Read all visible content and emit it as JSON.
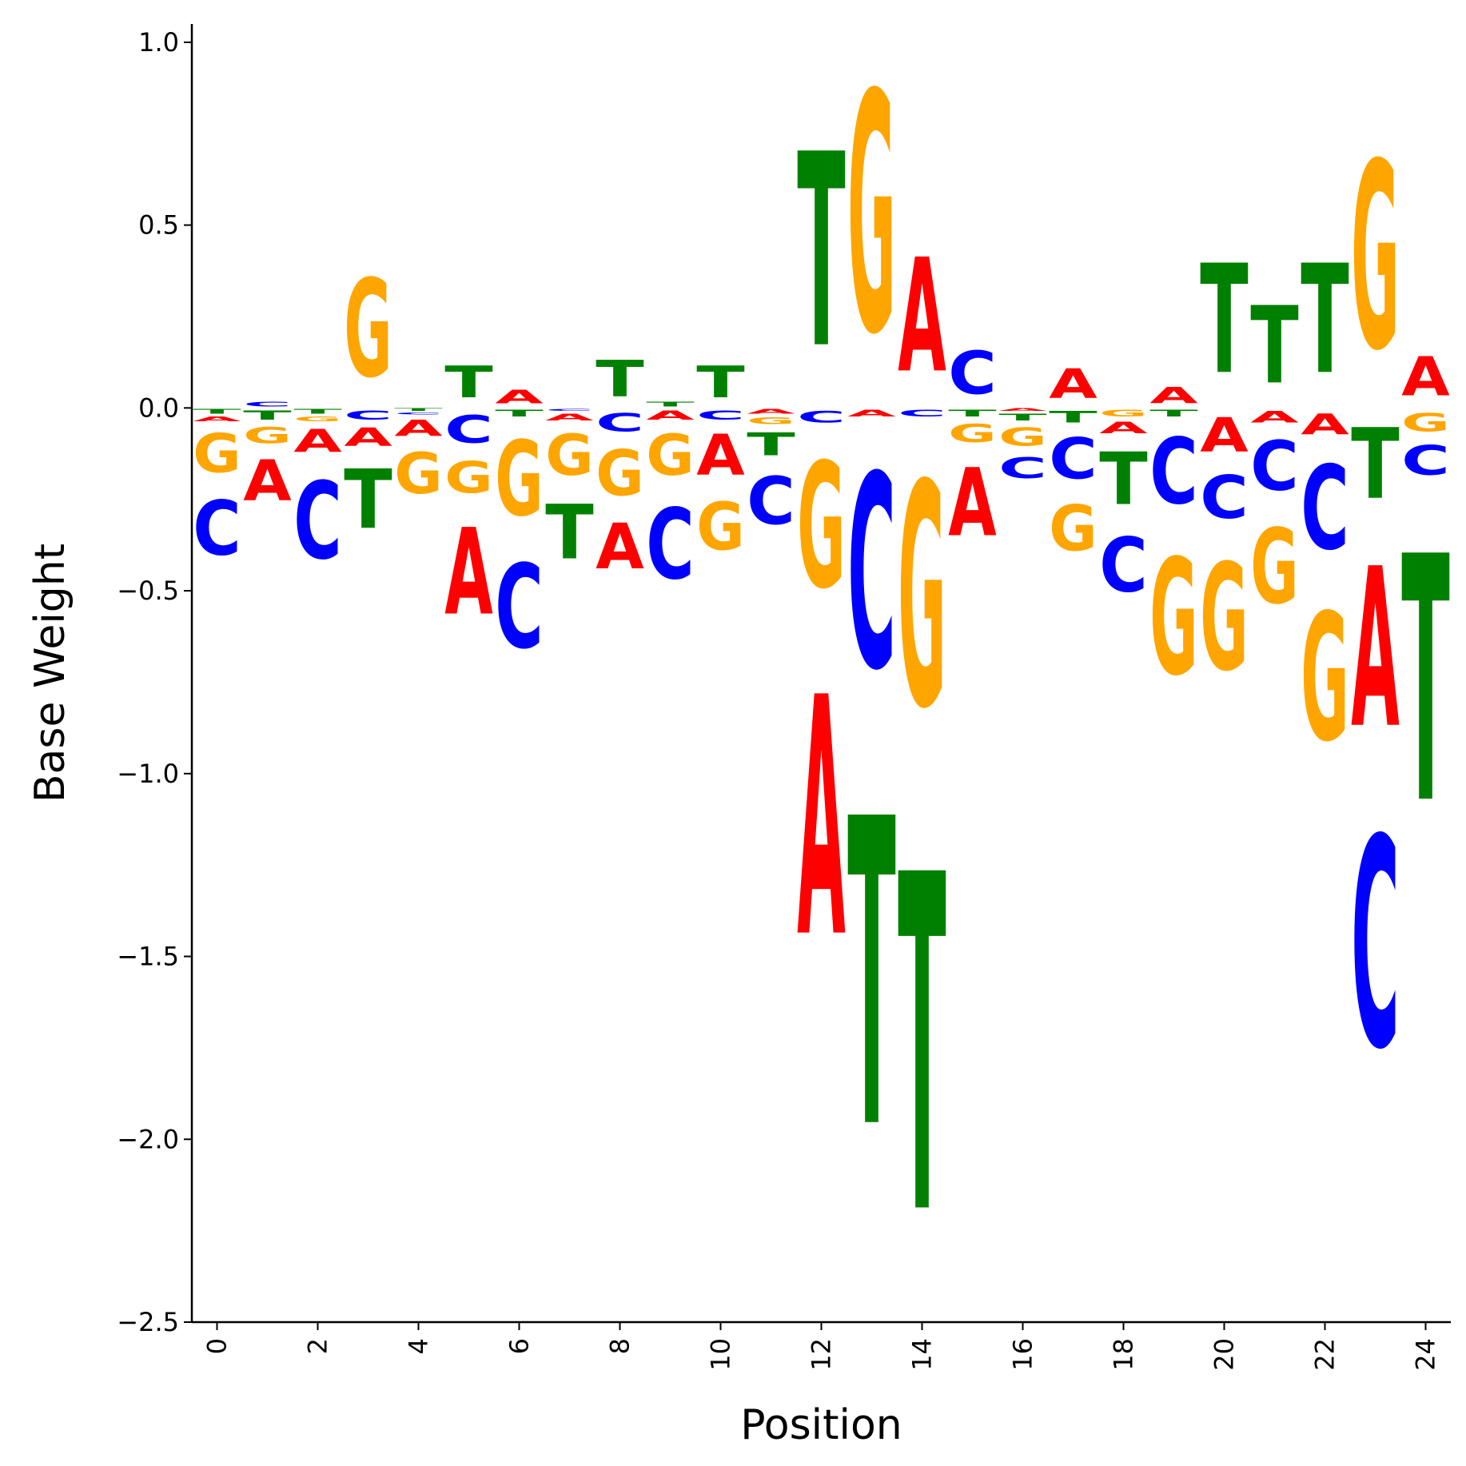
{
  "chart_data": {
    "type": "logo",
    "title": "",
    "xlabel": "Position",
    "ylabel": "Base Weight",
    "xlim": [
      -0.5,
      24.5
    ],
    "ylim": [
      -2.5,
      1.05
    ],
    "xticks": [
      0,
      2,
      4,
      6,
      8,
      10,
      12,
      14,
      16,
      18,
      20,
      22,
      24
    ],
    "xtick_labels": [
      "0",
      "2",
      "4",
      "6",
      "8",
      "10",
      "12",
      "14",
      "16",
      "18",
      "20",
      "22",
      "24"
    ],
    "yticks": [
      1.0,
      0.5,
      0.0,
      -0.5,
      -1.0,
      -1.5,
      -2.0,
      -2.5
    ],
    "ytick_labels": [
      "1.0",
      "0.5",
      "0.0",
      "−0.5",
      "−1.0",
      "−1.5",
      "−2.0",
      "−2.5"
    ],
    "grid": false,
    "colors": {
      "A": "#ff0000",
      "C": "#0000ff",
      "G": "#ffa500",
      "T": "#008000"
    },
    "positions": [
      {
        "pos": 0,
        "A": -0.02,
        "C": -0.24,
        "G": -0.17,
        "T": -0.02
      },
      {
        "pos": 1,
        "A": -0.18,
        "C": 0.02,
        "G": -0.07,
        "T": -0.04
      },
      {
        "pos": 2,
        "A": -0.1,
        "C": -0.34,
        "G": -0.02,
        "T": -0.02
      },
      {
        "pos": 3,
        "A": -0.08,
        "C": -0.04,
        "G": 0.43,
        "T": -0.26
      },
      {
        "pos": 4,
        "A": -0.07,
        "C": -0.01,
        "G": -0.18,
        "T": -0.01
      },
      {
        "pos": 5,
        "A": -0.38,
        "C": -0.12,
        "G": -0.14,
        "T": 0.14
      },
      {
        "pos": 6,
        "A": 0.06,
        "C": -0.37,
        "G": -0.33,
        "T": -0.03
      },
      {
        "pos": 7,
        "A": -0.03,
        "C": -0.01,
        "G": -0.18,
        "T": -0.24
      },
      {
        "pos": 8,
        "A": -0.2,
        "C": -0.08,
        "G": -0.2,
        "T": 0.16
      },
      {
        "pos": 9,
        "A": -0.04,
        "C": -0.31,
        "G": -0.18,
        "T": 0.02
      },
      {
        "pos": 10,
        "A": -0.18,
        "C": -0.04,
        "G": -0.21,
        "T": 0.14
      },
      {
        "pos": 11,
        "A": -0.02,
        "C": -0.21,
        "G": -0.03,
        "T": -0.1
      },
      {
        "pos": 12,
        "A": -1.05,
        "C": -0.05,
        "G": -0.55,
        "T": 0.85
      },
      {
        "pos": 13,
        "A": -0.03,
        "C": -0.85,
        "G": 1.05,
        "T": -1.35
      },
      {
        "pos": 14,
        "A": 0.5,
        "C": -0.03,
        "G": -0.98,
        "T": -1.48
      },
      {
        "pos": 15,
        "A": -0.3,
        "C": 0.19,
        "G": -0.08,
        "T": -0.03
      },
      {
        "pos": 16,
        "A": -0.01,
        "C": -0.09,
        "G": -0.08,
        "T": -0.03
      },
      {
        "pos": 17,
        "A": 0.13,
        "C": -0.18,
        "G": -0.2,
        "T": -0.05
      },
      {
        "pos": 18,
        "A": -0.05,
        "C": -0.24,
        "G": -0.03,
        "T": -0.23
      },
      {
        "pos": 19,
        "A": 0.07,
        "C": -0.29,
        "G": -0.51,
        "T": -0.03
      },
      {
        "pos": 20,
        "A": -0.15,
        "C": -0.19,
        "G": -0.47,
        "T": 0.48
      },
      {
        "pos": 21,
        "A": -0.05,
        "C": -0.22,
        "G": -0.33,
        "T": 0.34
      },
      {
        "pos": 22,
        "A": -0.09,
        "C": -0.37,
        "G": -0.56,
        "T": 0.48
      },
      {
        "pos": 23,
        "A": -0.7,
        "C": -0.92,
        "G": 0.82,
        "T": -0.31
      },
      {
        "pos": 24,
        "A": 0.17,
        "C": -0.13,
        "G": -0.08,
        "T": -1.08
      }
    ]
  }
}
